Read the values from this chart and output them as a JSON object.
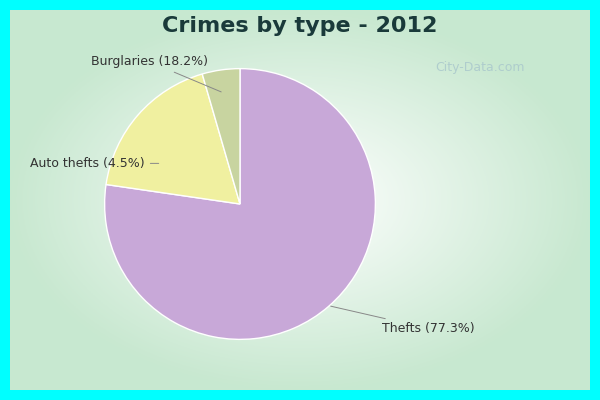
{
  "title": "Crimes by type - 2012",
  "slices": [
    {
      "label": "Thefts",
      "pct": 77.3,
      "color": "#C8A8D8"
    },
    {
      "label": "Burglaries",
      "pct": 18.2,
      "color": "#F0F0A0"
    },
    {
      "label": "Auto thefts",
      "pct": 4.5,
      "color": "#C8D4A0"
    }
  ],
  "label_texts": [
    "Thefts (77.3%)",
    "Burglaries (18.2%)",
    "Auto thefts (4.5%)"
  ],
  "border_color": "#00FFFF",
  "inner_bg_center": "#FFFFFF",
  "inner_bg_edge": "#C8E8D0",
  "title_fontsize": 16,
  "label_fontsize": 9,
  "watermark": "City-Data.com",
  "startangle": 90,
  "border_width": 10
}
